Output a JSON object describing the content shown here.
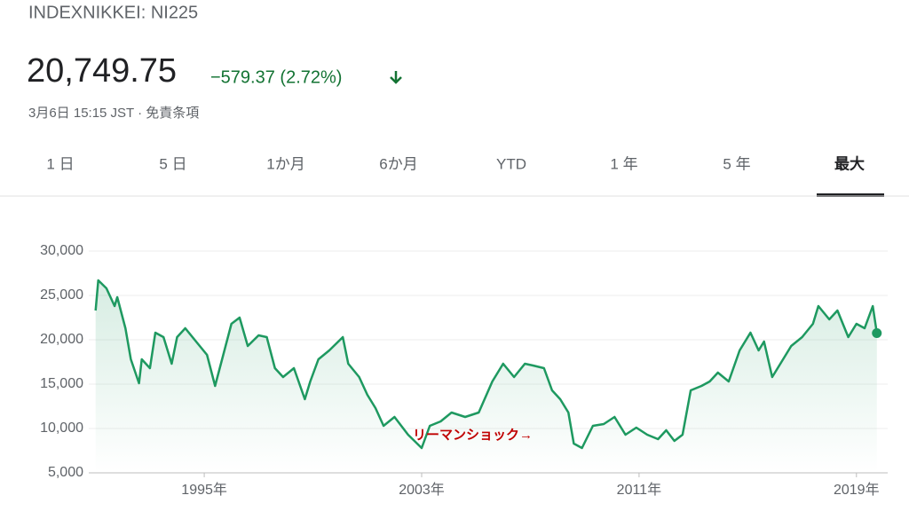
{
  "header": {
    "title": "INDEXNIKKEI: NI225",
    "price": "20,749.75",
    "change": "−579.37 (2.72%)",
    "date": "3月6日 15:15 JST · 免責条項"
  },
  "tabs": {
    "items": [
      "1 日",
      "5 日",
      "1か月",
      "6か月",
      "YTD",
      "1 年",
      "5 年",
      "最大"
    ],
    "selected": 7
  },
  "chart_data": {
    "type": "line",
    "color": "#1e9960",
    "grid": true,
    "annotation": "リーマンショック→",
    "xlim": [
      1990.75,
      2020.15
    ],
    "xticks": [
      {
        "value": 1995,
        "label": "1995年"
      },
      {
        "value": 2003,
        "label": "2003年"
      },
      {
        "value": 2011,
        "label": "2011年"
      },
      {
        "value": 2019,
        "label": "2019年"
      }
    ],
    "ylim": [
      5000,
      30000
    ],
    "yticks": [
      {
        "value": 5000,
        "label": "5,000"
      },
      {
        "value": 10000,
        "label": "10,000"
      },
      {
        "value": 15000,
        "label": "15,000"
      },
      {
        "value": 20000,
        "label": "20,000"
      },
      {
        "value": 25000,
        "label": "25,000"
      },
      {
        "value": 30000,
        "label": "30,000"
      }
    ],
    "x": [
      1991.0,
      1991.1,
      1991.4,
      1991.7,
      1991.8,
      1992.1,
      1992.3,
      1992.6,
      1992.7,
      1993.0,
      1993.2,
      1993.5,
      1993.8,
      1994.0,
      1994.3,
      1994.7,
      1995.1,
      1995.4,
      1995.7,
      1996.0,
      1996.3,
      1996.6,
      1997.0,
      1997.3,
      1997.6,
      1997.9,
      1998.3,
      1998.7,
      1998.9,
      1999.2,
      1999.6,
      2000.1,
      2000.3,
      2000.7,
      2001.0,
      2001.3,
      2001.6,
      2002.0,
      2002.5,
      2003.0,
      2003.3,
      2003.7,
      2004.1,
      2004.6,
      2005.1,
      2005.6,
      2006.0,
      2006.4,
      2006.8,
      2007.1,
      2007.5,
      2007.8,
      2008.1,
      2008.4,
      2008.6,
      2008.9,
      2009.3,
      2009.7,
      2010.1,
      2010.5,
      2010.9,
      2011.3,
      2011.7,
      2012.0,
      2012.3,
      2012.6,
      2012.9,
      2013.3,
      2013.6,
      2013.9,
      2014.3,
      2014.7,
      2015.1,
      2015.4,
      2015.6,
      2015.9,
      2016.2,
      2016.6,
      2017.0,
      2017.4,
      2017.6,
      2018.0,
      2018.3,
      2018.7,
      2019.0,
      2019.3,
      2019.6,
      2019.75
    ],
    "series": [
      {
        "name": "NI225",
        "values": [
          23300,
          26700,
          25800,
          23800,
          24800,
          21300,
          17800,
          15100,
          17800,
          16800,
          20800,
          20300,
          17300,
          20300,
          21300,
          19800,
          18300,
          14800,
          18300,
          21800,
          22500,
          19300,
          20500,
          20300,
          16800,
          15800,
          16800,
          13300,
          15300,
          17800,
          18800,
          20300,
          17300,
          15800,
          13800,
          12300,
          10300,
          11300,
          9300,
          7800,
          10300,
          10800,
          11800,
          11300,
          11800,
          15300,
          17300,
          15800,
          17300,
          17100,
          16800,
          14300,
          13300,
          11800,
          8300,
          7800,
          10300,
          10500,
          11300,
          9300,
          10100,
          9300,
          8800,
          9800,
          8600,
          9300,
          14300,
          14800,
          15300,
          16300,
          15300,
          18800,
          20800,
          18800,
          19800,
          15800,
          17300,
          19300,
          20300,
          21800,
          23800,
          22300,
          23300,
          20300,
          21800,
          21300,
          23800,
          20749.75
        ]
      }
    ]
  }
}
